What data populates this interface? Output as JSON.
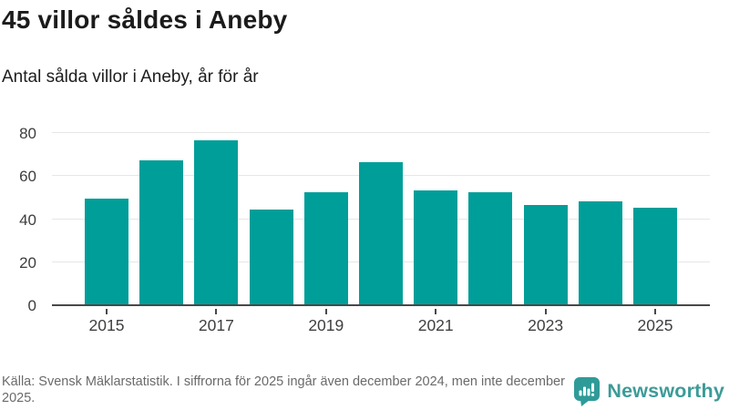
{
  "chart_data": {
    "type": "bar",
    "title": "45 villor såldes i Aneby",
    "subtitle": "Antal sålda villor i Aneby, år för år",
    "categories": [
      "2015",
      "2016",
      "2017",
      "2018",
      "2019",
      "2020",
      "2021",
      "2022",
      "2023",
      "2024",
      "2025"
    ],
    "values": [
      49,
      67,
      76,
      44,
      52,
      66,
      53,
      52,
      46,
      48,
      45
    ],
    "x_tick_labels": [
      "2015",
      "2017",
      "2019",
      "2021",
      "2023",
      "2025"
    ],
    "y_ticks": [
      0,
      20,
      40,
      60,
      80
    ],
    "ylim": [
      0,
      80
    ],
    "xlabel": "",
    "ylabel": "",
    "bar_color": "#009e99",
    "grid": "horizontal-light",
    "legend_position": "none"
  },
  "footer": {
    "source_text": "Källa: Svensk Mäklarstatistik. I siffrorna för 2025 ingår även december 2024, men inte december 2025.",
    "brand": "Newsworthy",
    "brand_color": "#3d9b97",
    "logo_icon": "speech-bubble-with-bar-chart-and-exclamation"
  }
}
